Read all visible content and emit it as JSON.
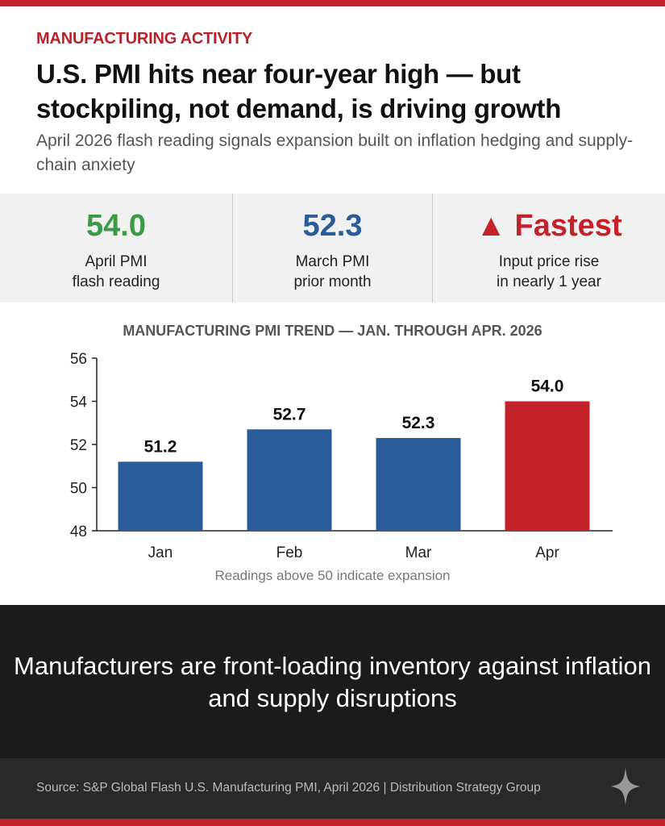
{
  "header": {
    "kicker": "MANUFACTURING ACTIVITY",
    "title": "U.S. PMI hits near four-year high — but stockpiling, not demand, is driving growth",
    "subtitle": "April 2026 flash reading signals expansion built on inflation hedging and supply-chain anxiety"
  },
  "stats": [
    {
      "value": "54.0",
      "label1": "April PMI",
      "label2": "flash reading",
      "color": "#3a9a48"
    },
    {
      "value": "52.3",
      "label1": "March PMI",
      "label2": "prior month",
      "color": "#2a5c9a"
    },
    {
      "value": "▲ Fastest",
      "label1": "Input price rise",
      "label2": "in nearly 1 year",
      "color": "#c4222a"
    }
  ],
  "chart_data": {
    "type": "bar",
    "title": "MANUFACTURING PMI TREND — JAN. THROUGH APR. 2026",
    "categories": [
      "Jan",
      "Feb",
      "Mar",
      "Apr"
    ],
    "values": [
      51.2,
      52.7,
      52.3,
      54.0
    ],
    "value_labels": [
      "51.2",
      "52.7",
      "52.3",
      "54.0"
    ],
    "colors": [
      "#2a5c9a",
      "#2a5c9a",
      "#2a5c9a",
      "#c4222a"
    ],
    "ylim": [
      48,
      56
    ],
    "yticks": [
      "48",
      "50",
      "52",
      "54",
      "56"
    ],
    "xlabel": "",
    "ylabel": "",
    "grid": false,
    "note": "Readings above 50 indicate expansion"
  },
  "takeaway": "Manufacturers are front-loading inventory against inflation and supply disruptions",
  "footer": {
    "source": "Source: S&P Global Flash U.S. Manufacturing PMI, April 2026 | Distribution Strategy Group"
  }
}
